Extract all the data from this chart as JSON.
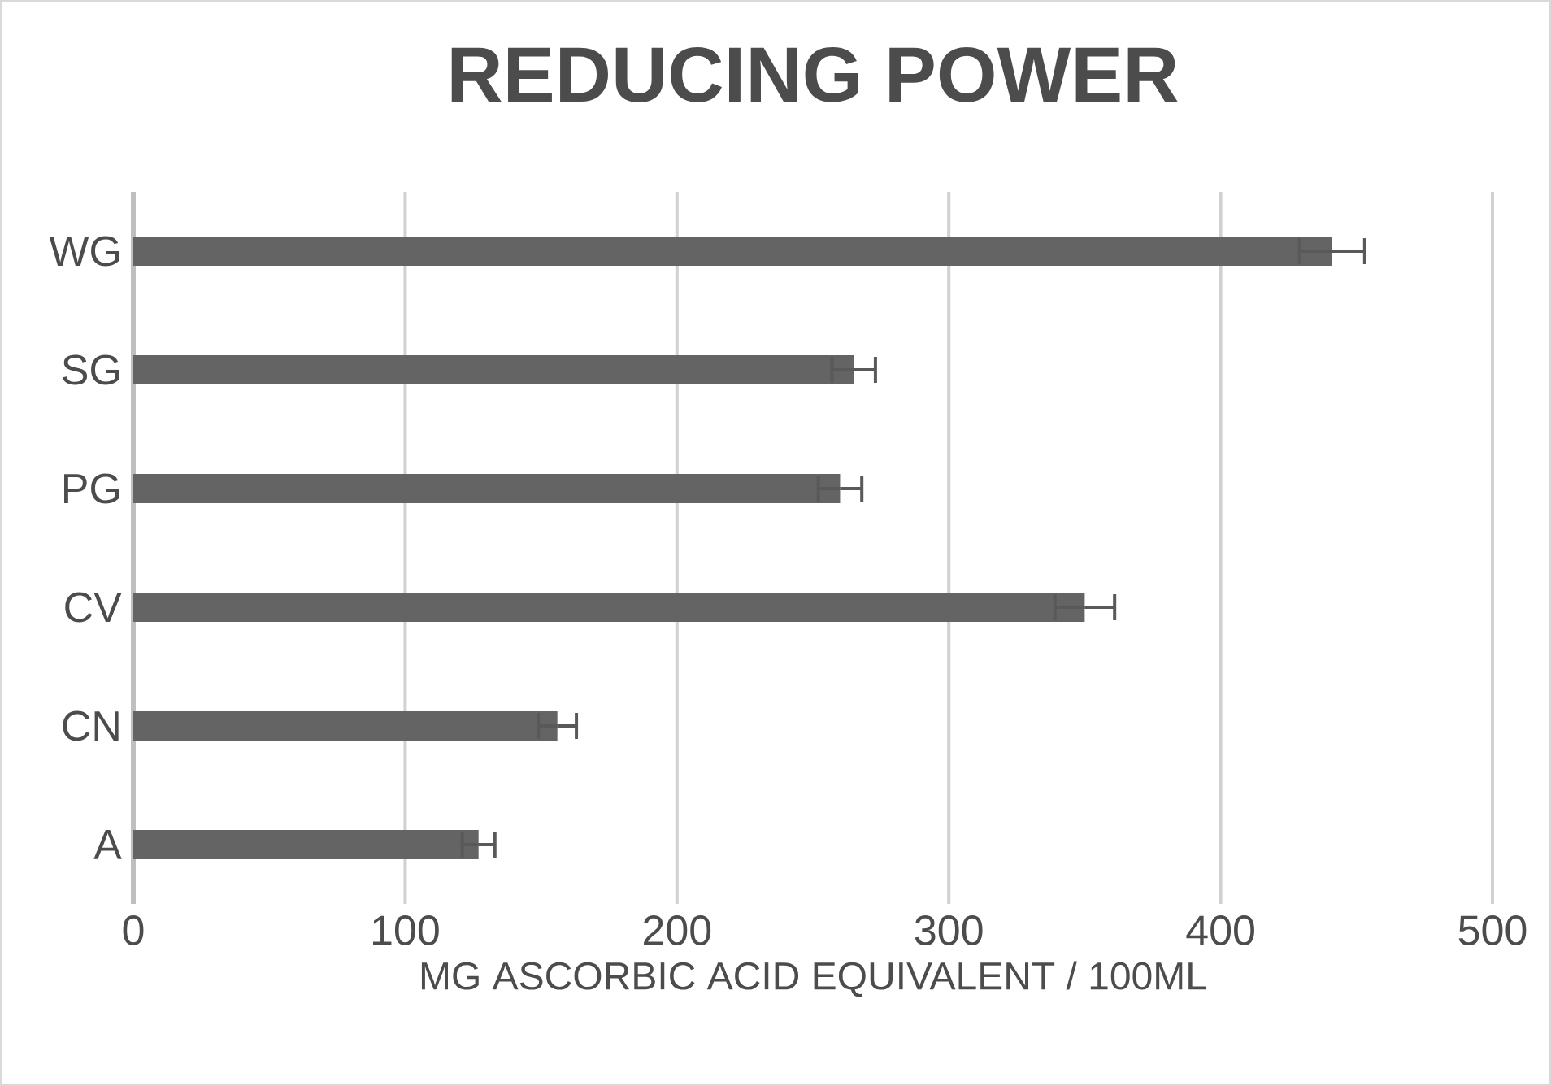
{
  "chart_data": {
    "type": "bar",
    "orientation": "horizontal",
    "title": "REDUCING POWER",
    "xlabel": "MG ASCORBIC ACID EQUIVALENT / 100ML",
    "categories": [
      "WG",
      "SG",
      "PG",
      "CV",
      "CN",
      "A"
    ],
    "values": [
      441,
      265,
      260,
      350,
      156,
      127
    ],
    "errors": [
      12,
      8,
      8,
      11,
      7,
      6
    ],
    "color": "#646464",
    "xlim": [
      0,
      500
    ],
    "xticks": [
      0,
      100,
      200,
      300,
      400,
      500
    ],
    "grid": "x"
  }
}
